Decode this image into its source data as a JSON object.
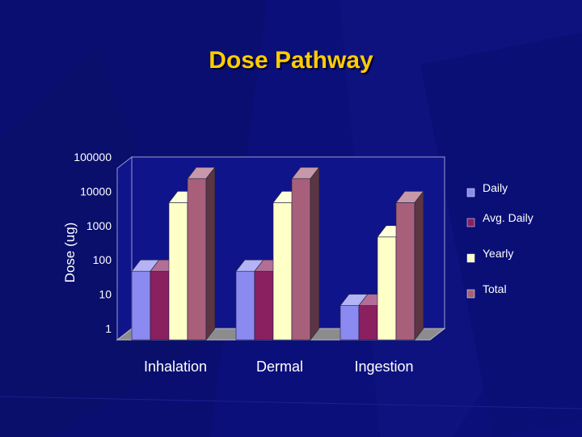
{
  "slide": {
    "title": "Dose Pathway"
  },
  "chart_data": {
    "type": "bar",
    "title": "Dose Pathway",
    "xlabel": "",
    "ylabel": "Dose (ug)",
    "yscale": "log",
    "ylim": [
      1,
      100000
    ],
    "yticks": [
      "1",
      "10",
      "100",
      "1000",
      "10000",
      "100000"
    ],
    "categories": [
      "Inhalation",
      "Dermal",
      "Ingestion"
    ],
    "series": [
      {
        "name": "Daily",
        "values": [
          100,
          100,
          10
        ],
        "color": "#8a8af0"
      },
      {
        "name": "Avg. Daily",
        "values": [
          100,
          100,
          10
        ],
        "color": "#8a2060"
      },
      {
        "name": "Yearly",
        "values": [
          10000,
          10000,
          1000
        ],
        "color": "#ffffc8"
      },
      {
        "name": "Total",
        "values": [
          50000,
          50000,
          10000
        ],
        "color": "#a8607a"
      }
    ],
    "legend_position": "right",
    "background": "#0b0f7a",
    "title_color": "#ffcc00"
  }
}
